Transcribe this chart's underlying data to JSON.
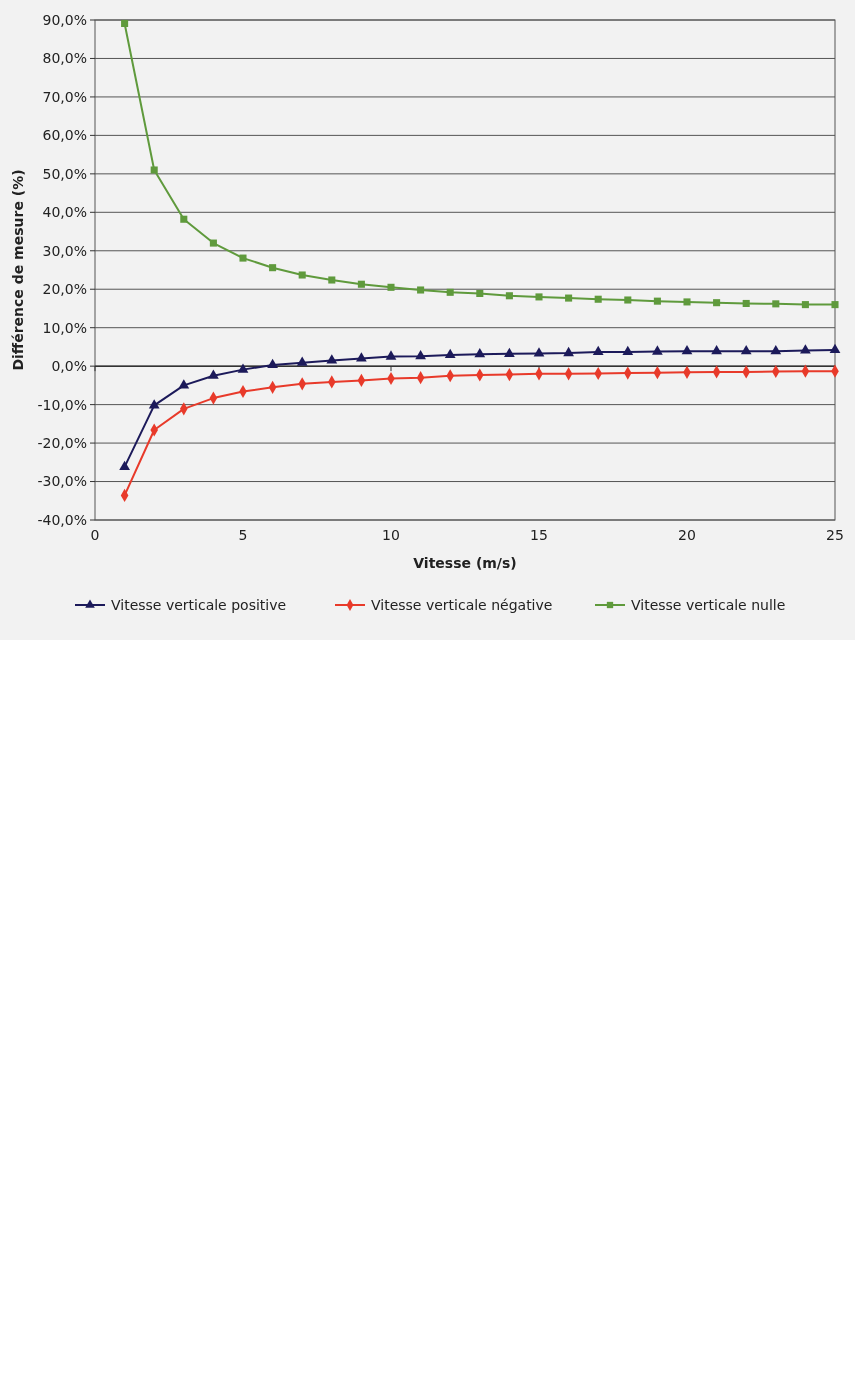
{
  "chart_data": {
    "type": "line",
    "xlabel": "Vitesse (m/s)",
    "ylabel": "Différence de mesure (%)",
    "x": [
      1,
      2,
      3,
      4,
      5,
      6,
      7,
      8,
      9,
      10,
      11,
      12,
      13,
      14,
      15,
      16,
      17,
      18,
      19,
      20,
      21,
      22,
      23,
      24,
      25
    ],
    "xlim": [
      0,
      25
    ],
    "xticks": [
      0,
      5,
      10,
      15,
      20,
      25
    ],
    "ylim": [
      -40,
      90
    ],
    "yticks": [
      {
        "value": -40,
        "label": "-40,0%"
      },
      {
        "value": -30,
        "label": "-30,0%"
      },
      {
        "value": -20,
        "label": "-20,0%"
      },
      {
        "value": -10,
        "label": "-10,0%"
      },
      {
        "value": 0,
        "label": "0,0%"
      },
      {
        "value": 10,
        "label": "10,0%"
      },
      {
        "value": 20,
        "label": "20,0%"
      },
      {
        "value": 30,
        "label": "30,0%"
      },
      {
        "value": 40,
        "label": "40,0%"
      },
      {
        "value": 50,
        "label": "50,0%"
      },
      {
        "value": 60,
        "label": "60,0%"
      },
      {
        "value": 70,
        "label": "70,0%"
      },
      {
        "value": 80,
        "label": "80,0%"
      },
      {
        "value": 90,
        "label": "90,0%"
      }
    ],
    "grid": "y",
    "legend": "bottom",
    "line_style": "solid",
    "series": [
      {
        "name": "Vitesse verticale positive",
        "color": "#1c1a5a",
        "marker": "triangle",
        "values": [
          -26.2,
          -10.2,
          -5.0,
          -2.5,
          -0.9,
          0.3,
          0.9,
          1.5,
          2.0,
          2.5,
          2.6,
          2.9,
          3.1,
          3.2,
          3.3,
          3.4,
          3.7,
          3.7,
          3.8,
          3.9,
          3.9,
          3.9,
          3.9,
          4.1,
          4.2
        ]
      },
      {
        "name": "Vitesse verticale négative",
        "color": "#e83a2a",
        "marker": "diamond",
        "values": [
          -33.6,
          -16.6,
          -11.1,
          -8.3,
          -6.6,
          -5.5,
          -4.6,
          -4.1,
          -3.7,
          -3.2,
          -3.0,
          -2.5,
          -2.3,
          -2.2,
          -2.0,
          -2.0,
          -1.9,
          -1.8,
          -1.7,
          -1.6,
          -1.5,
          -1.5,
          -1.4,
          -1.3,
          -1.3
        ]
      },
      {
        "name": "Vitesse verticale nulle",
        "color": "#5f9a3c",
        "marker": "square",
        "values": [
          89.1,
          51.0,
          38.2,
          32.0,
          28.1,
          25.6,
          23.7,
          22.4,
          21.3,
          20.5,
          19.8,
          19.2,
          18.9,
          18.3,
          18.0,
          17.7,
          17.4,
          17.2,
          16.9,
          16.7,
          16.5,
          16.3,
          16.2,
          16.0,
          16.0
        ]
      }
    ]
  }
}
